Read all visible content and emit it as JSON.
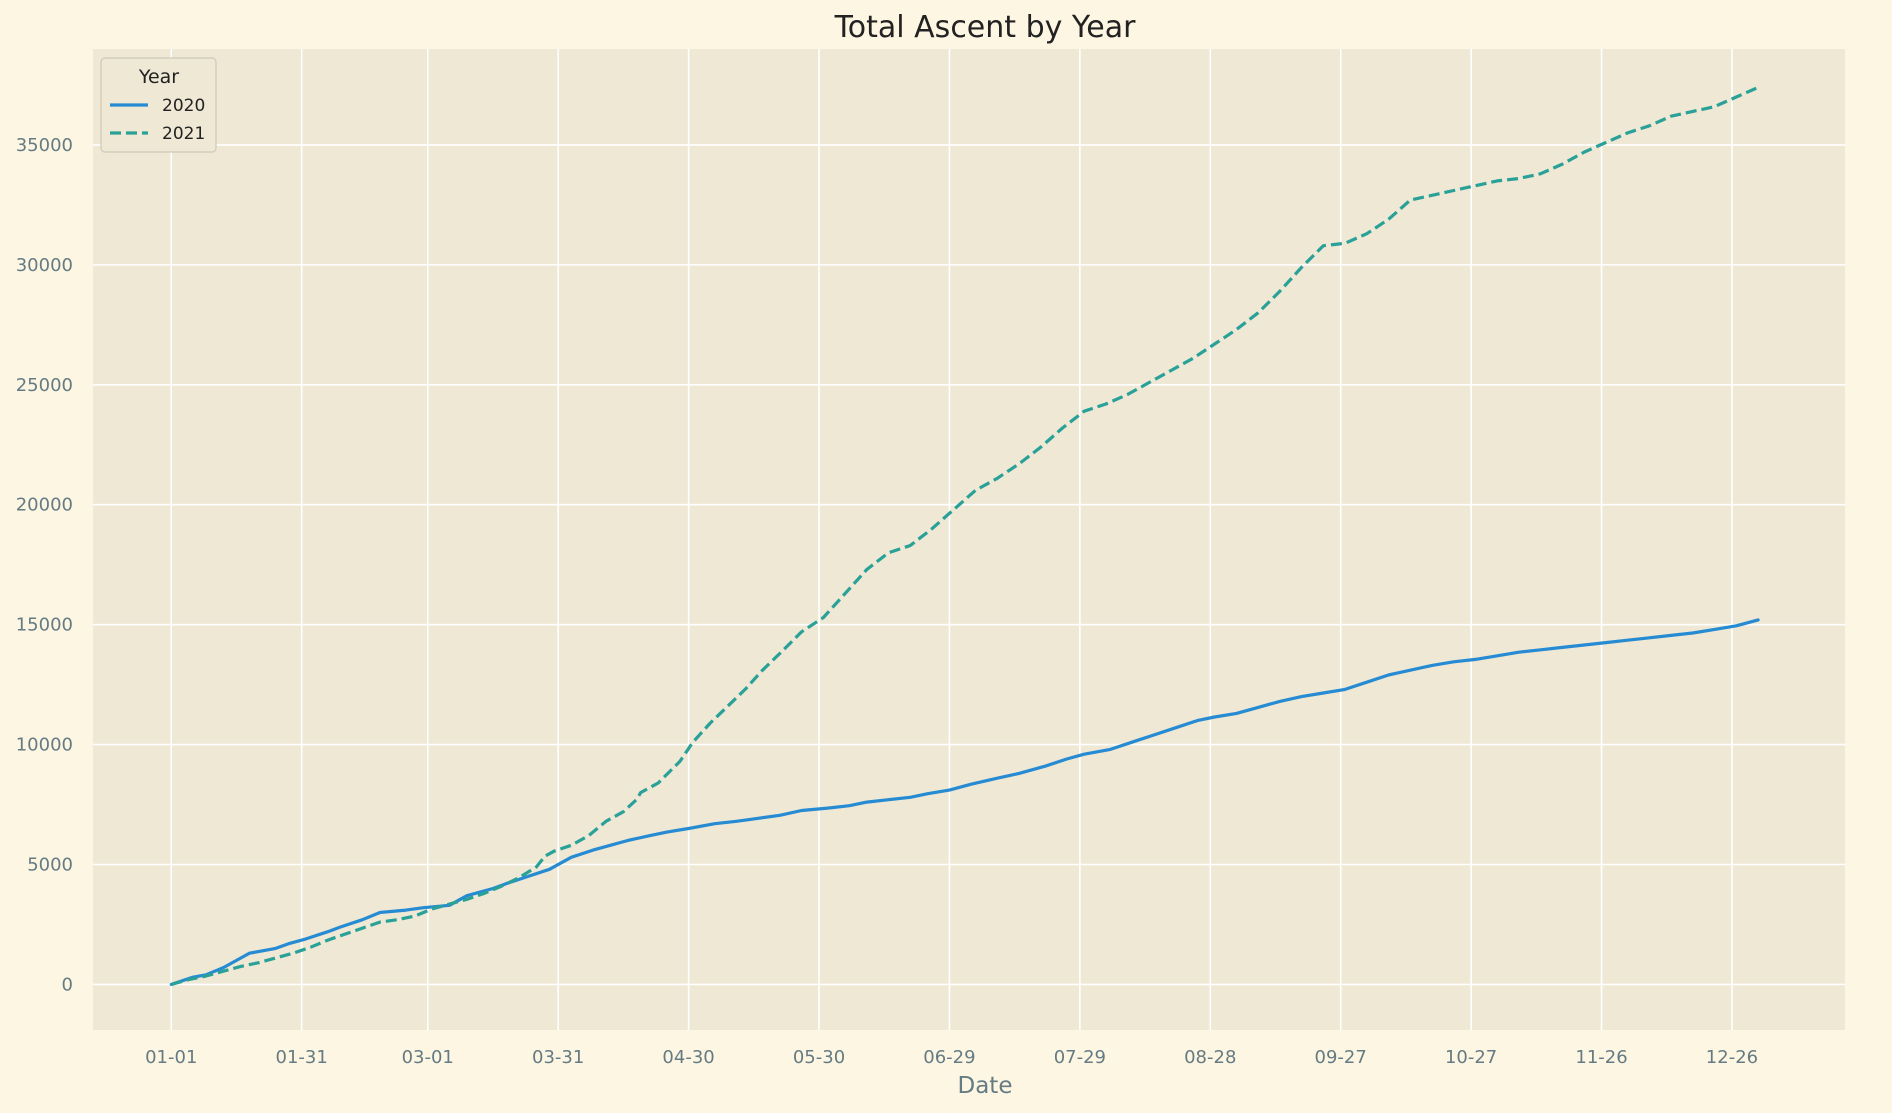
{
  "chart_data": {
    "type": "line",
    "title": "Total Ascent by Year",
    "xlabel": "Date",
    "ylabel": "",
    "x_tick_labels": [
      "01-01",
      "01-31",
      "03-01",
      "03-31",
      "04-30",
      "05-30",
      "06-29",
      "07-29",
      "08-28",
      "09-27",
      "10-27",
      "11-26",
      "12-26"
    ],
    "x_tick_days": [
      0,
      30,
      59,
      89,
      119,
      149,
      179,
      209,
      239,
      269,
      299,
      329,
      359
    ],
    "xlim": [
      -18,
      385
    ],
    "ylim": [
      -1900,
      39000
    ],
    "y_ticks": [
      0,
      5000,
      10000,
      15000,
      20000,
      25000,
      30000,
      35000
    ],
    "legend": {
      "title": "Year",
      "position": "top-left"
    },
    "grid": true,
    "series": [
      {
        "name": "2020",
        "style": "solid",
        "color": "#268bd2",
        "days": [
          0,
          5,
          8,
          12,
          16,
          18,
          24,
          27,
          31,
          36,
          39,
          44,
          48,
          54,
          58,
          64,
          68,
          74,
          77,
          82,
          87,
          92,
          97,
          101,
          105,
          110,
          114,
          119,
          125,
          130,
          134,
          140,
          145,
          151,
          156,
          160,
          165,
          170,
          174,
          179,
          184,
          190,
          195,
          201,
          206,
          210,
          216,
          221,
          226,
          231,
          236,
          240,
          245,
          250,
          255,
          260,
          265,
          270,
          275,
          280,
          285,
          290,
          295,
          300,
          305,
          310,
          315,
          320,
          325,
          330,
          335,
          340,
          345,
          350,
          355,
          360,
          365
        ],
        "values": [
          0,
          300,
          400,
          700,
          1100,
          1300,
          1500,
          1700,
          1900,
          2200,
          2400,
          2700,
          3000,
          3100,
          3200,
          3300,
          3700,
          4000,
          4200,
          4500,
          4800,
          5300,
          5600,
          5800,
          6000,
          6200,
          6350,
          6500,
          6700,
          6800,
          6900,
          7050,
          7250,
          7350,
          7450,
          7600,
          7700,
          7800,
          7950,
          8100,
          8350,
          8600,
          8800,
          9100,
          9400,
          9600,
          9800,
          10100,
          10400,
          10700,
          11000,
          11150,
          11300,
          11550,
          11800,
          12000,
          12150,
          12300,
          12600,
          12900,
          13100,
          13300,
          13450,
          13550,
          13700,
          13850,
          13950,
          14050,
          14150,
          14250,
          14350,
          14450,
          14550,
          14650,
          14800,
          14950,
          15200
        ]
      },
      {
        "name": "2021",
        "style": "dashed",
        "color": "#2aa198",
        "days": [
          0,
          4,
          8,
          12,
          16,
          20,
          24,
          28,
          32,
          36,
          40,
          44,
          48,
          52,
          56,
          60,
          64,
          68,
          72,
          76,
          80,
          84,
          86,
          88,
          92,
          96,
          100,
          104,
          107,
          108,
          112,
          117,
          120,
          124,
          128,
          132,
          136,
          140,
          145,
          150,
          155,
          160,
          165,
          170,
          175,
          180,
          185,
          190,
          195,
          200,
          205,
          210,
          215,
          220,
          225,
          230,
          235,
          240,
          245,
          250,
          255,
          260,
          265,
          270,
          275,
          280,
          285,
          290,
          295,
          300,
          305,
          310,
          315,
          320,
          325,
          330,
          335,
          340,
          345,
          350,
          355,
          360,
          365
        ],
        "values": [
          0,
          200,
          350,
          550,
          750,
          900,
          1100,
          1300,
          1550,
          1850,
          2100,
          2350,
          2600,
          2700,
          2850,
          3150,
          3350,
          3550,
          3800,
          4100,
          4450,
          4900,
          5350,
          5550,
          5800,
          6200,
          6800,
          7200,
          7700,
          8000,
          8400,
          9300,
          10100,
          10900,
          11600,
          12300,
          13100,
          13800,
          14700,
          15300,
          16300,
          17300,
          18000,
          18300,
          19000,
          19800,
          20600,
          21100,
          21700,
          22400,
          23200,
          23900,
          24200,
          24600,
          25100,
          25600,
          26100,
          26700,
          27300,
          28000,
          28900,
          29900,
          30800,
          30900,
          31300,
          31900,
          32700,
          32900,
          33100,
          33300,
          33500,
          33600,
          33800,
          34200,
          34700,
          35100,
          35500,
          35800,
          36200,
          36400,
          36600,
          37000,
          37400
        ]
      }
    ]
  }
}
